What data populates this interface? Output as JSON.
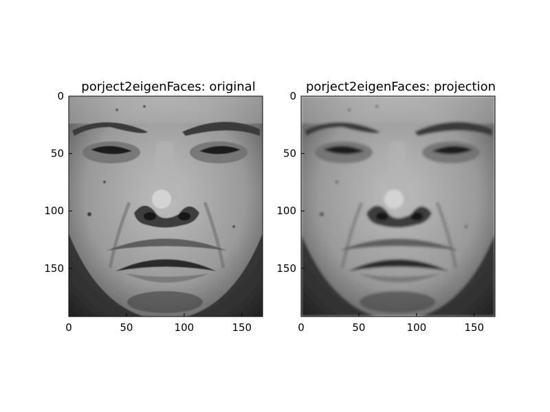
{
  "figure": {
    "panels": [
      {
        "title": "porject2eigenFaces: original",
        "image_name": "grayscale-face-original",
        "x_ticks": [
          "0",
          "50",
          "100",
          "150"
        ],
        "y_ticks": [
          "0",
          "50",
          "100",
          "150"
        ],
        "sharpness": "sharp"
      },
      {
        "title": "porject2eigenFaces: projection",
        "image_name": "grayscale-face-projection",
        "x_ticks": [
          "0",
          "50",
          "100",
          "150"
        ],
        "y_ticks": [
          "0",
          "50",
          "100",
          "150"
        ],
        "sharpness": "blurred"
      }
    ],
    "x_range": [
      0,
      168
    ],
    "y_range": [
      0,
      192
    ]
  }
}
